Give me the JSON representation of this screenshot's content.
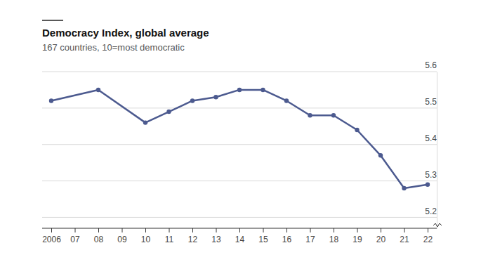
{
  "chart_data": {
    "type": "line",
    "title": "Democracy Index, global average",
    "subtitle": "167 countries, 10=most democratic",
    "x": [
      2006,
      2008,
      2010,
      2011,
      2012,
      2013,
      2014,
      2015,
      2016,
      2017,
      2018,
      2019,
      2020,
      2021,
      2022
    ],
    "values": [
      5.52,
      5.55,
      5.46,
      5.49,
      5.52,
      5.53,
      5.55,
      5.55,
      5.52,
      5.48,
      5.48,
      5.44,
      5.37,
      5.28,
      5.29
    ],
    "color": "#4c5a8f",
    "marker": "circle",
    "xlim": [
      2006,
      2022
    ],
    "xticks": [
      2006,
      {
        "value": 2007,
        "label": "07"
      },
      {
        "value": 2008,
        "label": "08"
      },
      {
        "value": 2009,
        "label": "09"
      },
      {
        "value": 2010,
        "label": "10"
      },
      {
        "value": 2011,
        "label": "11"
      },
      {
        "value": 2012,
        "label": "12"
      },
      {
        "value": 2013,
        "label": "13"
      },
      {
        "value": 2014,
        "label": "14"
      },
      {
        "value": 2015,
        "label": "15"
      },
      {
        "value": 2016,
        "label": "16"
      },
      {
        "value": 2017,
        "label": "17"
      },
      {
        "value": 2018,
        "label": "18"
      },
      {
        "value": 2019,
        "label": "19"
      },
      {
        "value": 2020,
        "label": "20"
      },
      {
        "value": 2021,
        "label": "21"
      },
      {
        "value": 2022,
        "label": "22"
      }
    ],
    "ylim": [
      5.17,
      5.6
    ],
    "yticks": [
      5.2,
      5.3,
      5.4,
      5.5,
      5.6
    ],
    "grid": true
  }
}
